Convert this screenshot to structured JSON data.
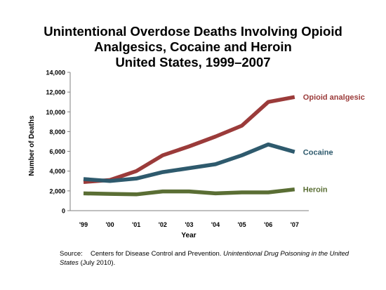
{
  "title_lines": [
    "Unintentional Overdose Deaths Involving Opioid",
    "Analgesics, Cocaine and Heroin",
    "United States, 1999–2007"
  ],
  "source": {
    "label": "Source:",
    "text_1": "Centers for Disease Control and Prevention. ",
    "italic": "Unintentional Drug Poisoning in the United States",
    "text_2": " (July 2010)."
  },
  "chart_data": {
    "type": "line",
    "title": "Unintentional Overdose Deaths Involving Opioid Analgesics, Cocaine and Heroin United States, 1999–2007",
    "xlabel": "Year",
    "ylabel": "Number of Deaths",
    "categories": [
      "'99",
      "'00",
      "'01",
      "'02",
      "'03",
      "'04",
      "'05",
      "'06",
      "'07"
    ],
    "ylim": [
      0,
      14000
    ],
    "yticks": [
      0,
      2000,
      4000,
      6000,
      8000,
      10000,
      12000,
      14000
    ],
    "ytick_labels": [
      "0",
      "2,000",
      "4,000",
      "6,000",
      "8,000",
      "10,000",
      "12,000",
      "14,000"
    ],
    "grid": false,
    "legend": "inline labels at line ends",
    "series": [
      {
        "name": "Opioid analgesic",
        "color": "#9b3b3a",
        "values": [
          2900,
          3100,
          4000,
          5600,
          6500,
          7500,
          8600,
          11000,
          11500
        ]
      },
      {
        "name": "Cocaine",
        "color": "#2e5a6d",
        "values": [
          3200,
          3000,
          3250,
          3900,
          4300,
          4700,
          5600,
          6700,
          5950
        ]
      },
      {
        "name": "Heroin",
        "color": "#5a6e34",
        "values": [
          1750,
          1700,
          1650,
          1950,
          1950,
          1750,
          1850,
          1850,
          2150
        ]
      }
    ]
  }
}
